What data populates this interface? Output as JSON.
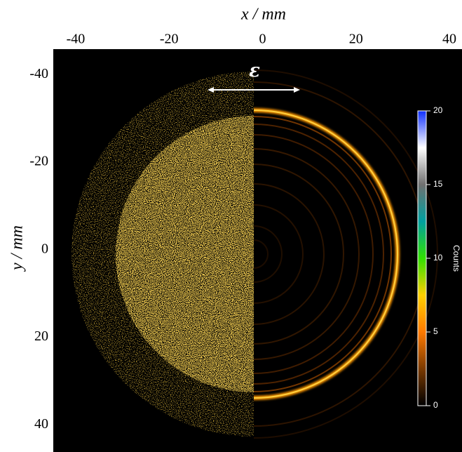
{
  "chart_data": {
    "type": "image",
    "xlabel": "x / mm",
    "ylabel": "y / mm",
    "xlim": [
      -44.8,
      42.7
    ],
    "xticks": [
      -40,
      -20,
      0,
      20,
      40
    ],
    "ylim": [
      -45.8,
      46.2
    ],
    "yticks": [
      -40,
      -20,
      0,
      20,
      40
    ],
    "y_inverted": true,
    "annotation": "ε",
    "colorbar": {
      "label": "Counts",
      "lim": [
        0,
        20
      ],
      "ticks": [
        0,
        5,
        10,
        15,
        20
      ],
      "colormap": [
        "#000000",
        "#7a3a00",
        "#ff7a00",
        "#ffd000",
        "#30e000",
        "#00a0a0",
        "#707070",
        "#ffffff",
        "#1030ff"
      ]
    }
  }
}
